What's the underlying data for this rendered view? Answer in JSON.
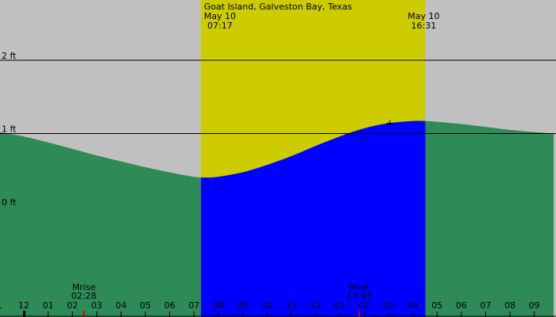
{
  "chart_data": {
    "type": "area",
    "title": "Goat Island, Galveston Bay, Texas",
    "y_unit": "ft",
    "ylim": [
      -1.0,
      2.5
    ],
    "y_ticks": [
      {
        "value": 2,
        "label": "2 ft"
      },
      {
        "value": 1,
        "label": "1 ft"
      },
      {
        "value": 0,
        "label": "0 ft"
      }
    ],
    "x_ticks": [
      "1",
      "12",
      "01",
      "02",
      "03",
      "04",
      "05",
      "06",
      "07",
      "08",
      "09",
      "10",
      "11",
      "12",
      "01",
      "02",
      "03",
      "04",
      "05",
      "06",
      "07",
      "08",
      "09"
    ],
    "daylight": {
      "sunrise": {
        "date": "May 10",
        "time": "07:17"
      },
      "sunset": {
        "date": "May 10",
        "time": "16:31"
      }
    },
    "tide_series": {
      "x_hours": [
        -1.0,
        0.0,
        1.0,
        2.0,
        3.0,
        4.0,
        5.0,
        6.0,
        7.0,
        7.5,
        8.0,
        9.0,
        10.0,
        11.0,
        12.0,
        13.0,
        14.0,
        15.0,
        16.0,
        16.5,
        17.0,
        18.0,
        19.0,
        20.0,
        21.0,
        21.8
      ],
      "y_ft": [
        1.02,
        0.96,
        0.88,
        0.79,
        0.7,
        0.62,
        0.54,
        0.47,
        0.41,
        0.4,
        0.41,
        0.47,
        0.57,
        0.69,
        0.83,
        0.96,
        1.07,
        1.14,
        1.17,
        1.17,
        1.16,
        1.13,
        1.09,
        1.05,
        1.02,
        1.0
      ]
    },
    "highlight_window": {
      "start_hour": 7.29,
      "end_hour": 16.52
    },
    "events": [
      {
        "name": "Mrise",
        "time": "02:28",
        "hour": 2.47
      },
      {
        "name": "Mset",
        "time": "13:48",
        "hour": 13.8
      }
    ],
    "colors": {
      "background": "#c0c0c0",
      "daylight": "#cccc00",
      "tide": "#2e8b57",
      "tide_daylight": "#0000ff",
      "event_tick": "#cc0000",
      "line": "#000000"
    }
  }
}
